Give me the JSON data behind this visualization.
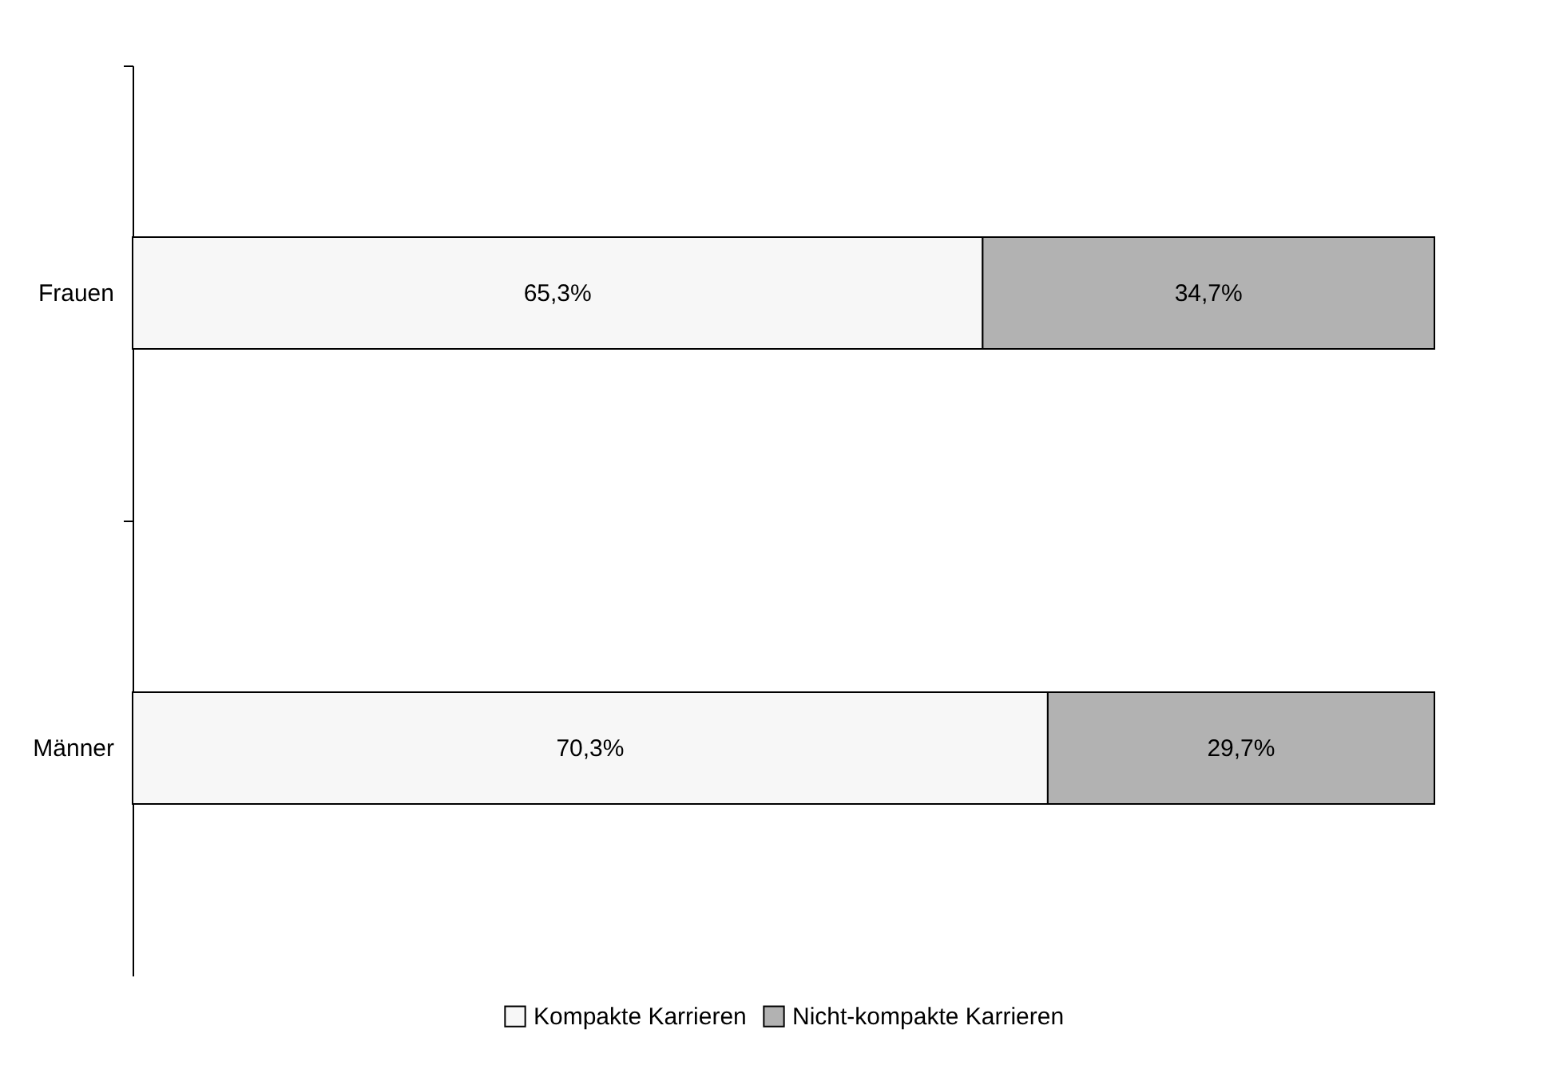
{
  "chart_data": {
    "type": "bar",
    "orientation": "horizontal",
    "stacked": true,
    "categories": [
      "Frauen",
      "Männer"
    ],
    "series": [
      {
        "name": "Kompakte Karrieren",
        "color": "#f7f7f7",
        "values": [
          65.3,
          70.3
        ],
        "value_labels": [
          "65,3%",
          "70,3%"
        ]
      },
      {
        "name": "Nicht-kompakte Karrieren",
        "color": "#b2b2b2",
        "values": [
          34.7,
          29.7
        ],
        "value_labels": [
          "34,7%",
          "29,7%"
        ]
      }
    ],
    "legend": "bottom"
  }
}
